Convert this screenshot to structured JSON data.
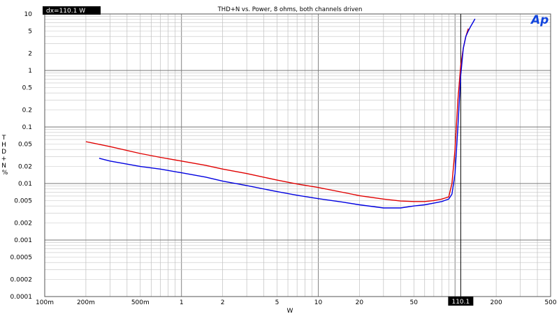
{
  "chart_data": {
    "type": "line",
    "title": "THD+N vs. Power, 8 ohms, both channels driven",
    "xlabel": "W",
    "ylabel": "THD + N %",
    "x_scale": "log",
    "y_scale": "log",
    "xlim": [
      0.1,
      500
    ],
    "ylim": [
      0.0001,
      10
    ],
    "x_ticks": [
      {
        "v": 0.1,
        "label": "100m"
      },
      {
        "v": 0.2,
        "label": "200m"
      },
      {
        "v": 0.5,
        "label": "500m"
      },
      {
        "v": 1,
        "label": "1"
      },
      {
        "v": 2,
        "label": "2"
      },
      {
        "v": 5,
        "label": "5"
      },
      {
        "v": 10,
        "label": "10"
      },
      {
        "v": 20,
        "label": "20"
      },
      {
        "v": 50,
        "label": "50"
      },
      {
        "v": 200,
        "label": "200"
      },
      {
        "v": 500,
        "label": "500"
      }
    ],
    "y_ticks": [
      {
        "v": 10,
        "label": "10"
      },
      {
        "v": 5,
        "label": "5"
      },
      {
        "v": 2,
        "label": "2"
      },
      {
        "v": 1,
        "label": "1"
      },
      {
        "v": 0.5,
        "label": "0.5"
      },
      {
        "v": 0.2,
        "label": "0.2"
      },
      {
        "v": 0.1,
        "label": "0.1"
      },
      {
        "v": 0.05,
        "label": "0.05"
      },
      {
        "v": 0.02,
        "label": "0.02"
      },
      {
        "v": 0.01,
        "label": "0.01"
      },
      {
        "v": 0.005,
        "label": "0.005"
      },
      {
        "v": 0.002,
        "label": "0.002"
      },
      {
        "v": 0.001,
        "label": "0.001"
      },
      {
        "v": 0.0005,
        "label": "0.0005"
      },
      {
        "v": 0.0002,
        "label": "0.0002"
      },
      {
        "v": 0.0001,
        "label": "0.0001"
      }
    ],
    "grid": true,
    "cursor": {
      "x": 110.1,
      "label": "110.1"
    },
    "cursor_readout": "dx=110.1  W",
    "logo": "Ap",
    "series": [
      {
        "color": "#e00000",
        "x": [
          0.2,
          0.3,
          0.5,
          0.7,
          1,
          1.5,
          2,
          3,
          5,
          7,
          10,
          15,
          20,
          30,
          40,
          50,
          60,
          70,
          80,
          90,
          95,
          100,
          105,
          110,
          115,
          120,
          125
        ],
        "y": [
          0.055,
          0.045,
          0.034,
          0.029,
          0.025,
          0.021,
          0.018,
          0.015,
          0.0115,
          0.0098,
          0.0085,
          0.007,
          0.0061,
          0.0053,
          0.0049,
          0.0048,
          0.0048,
          0.005,
          0.0053,
          0.0058,
          0.01,
          0.04,
          0.3,
          1.2,
          2.5,
          4,
          5.5
        ]
      },
      {
        "color": "#0000e0",
        "x": [
          0.25,
          0.3,
          0.5,
          0.7,
          1,
          1.5,
          2,
          3,
          5,
          7,
          10,
          15,
          20,
          30,
          40,
          50,
          60,
          70,
          80,
          90,
          95,
          100,
          105,
          110,
          115,
          120,
          125,
          130,
          135,
          140
        ],
        "y": [
          0.028,
          0.025,
          0.02,
          0.018,
          0.0155,
          0.013,
          0.011,
          0.0092,
          0.0072,
          0.0062,
          0.0054,
          0.0047,
          0.0042,
          0.0037,
          0.0037,
          0.004,
          0.0042,
          0.0045,
          0.0048,
          0.0053,
          0.0065,
          0.015,
          0.1,
          0.8,
          2.5,
          4,
          5,
          6,
          7,
          8.2
        ]
      }
    ]
  }
}
